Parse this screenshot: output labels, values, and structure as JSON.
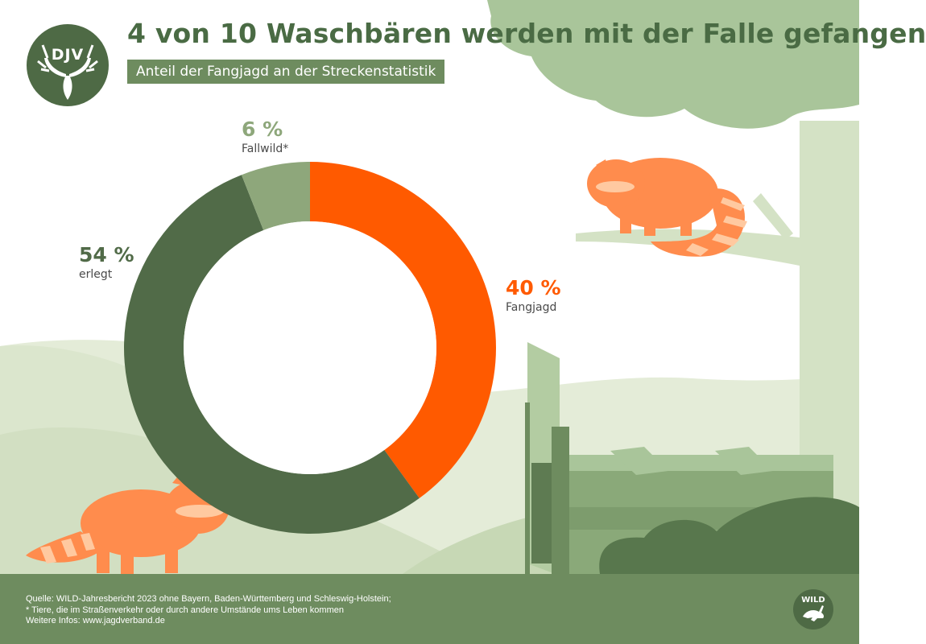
{
  "title": "4 von 10 Waschbären werden mit der Falle gefangen",
  "subtitle": "Anteil der Fangjagd an der Streckenstatistik",
  "logo_text": "DJV",
  "chart_data": {
    "type": "pie",
    "style": "donut",
    "start": "top, clockwise",
    "slices": [
      {
        "pct_label": "40 %",
        "name": "Fangjagd",
        "value": 40,
        "color": "#ff5a00"
      },
      {
        "pct_label": "54 %",
        "name": "erlegt",
        "value": 54,
        "color": "#516b48"
      },
      {
        "pct_label": "6 %",
        "name": "Fallwild*",
        "value": 6,
        "color": "#8ea77b"
      }
    ]
  },
  "footer": {
    "source_lines": [
      "Quelle: WILD-Jahresbericht 2023 ohne Bayern, Baden-Württemberg und Schleswig-Holstein;",
      "* Tiere, die im Straßenverkehr oder durch andere Umstände ums Leben kommen",
      "Weitere Infos: www.jagdverband.de"
    ],
    "badge_text": "WILD"
  },
  "colors": {
    "dark_green": "#516b48",
    "light_green": "#8ea77b",
    "orange": "#ff5a00",
    "raccoon_orange": "#ff8c4d",
    "footer_green": "#6e8c5f"
  }
}
